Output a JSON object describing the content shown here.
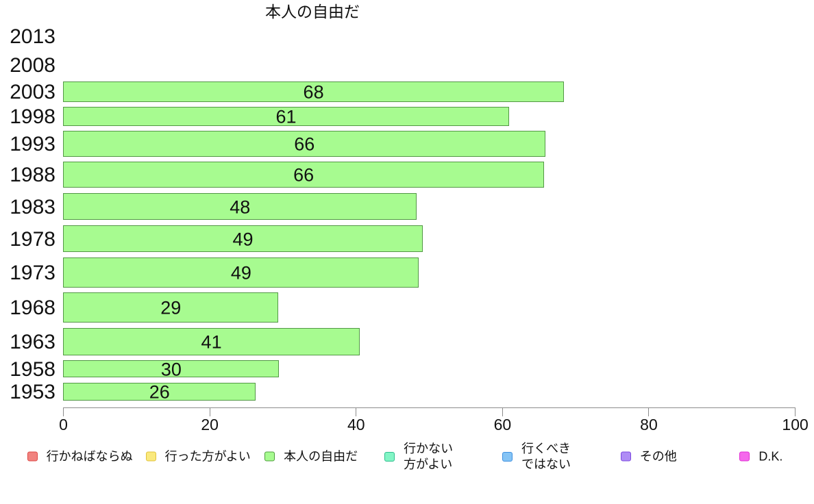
{
  "chart_data": {
    "type": "bar",
    "orientation": "horizontal",
    "title": "本人の自由だ",
    "categories": [
      "2013",
      "2008",
      "2003",
      "1998",
      "1993",
      "1988",
      "1983",
      "1978",
      "1973",
      "1968",
      "1963",
      "1958",
      "1953"
    ],
    "values": [
      null,
      null,
      68.4,
      60.9,
      65.9,
      65.7,
      48.3,
      49.1,
      48.6,
      29.4,
      40.5,
      29.5,
      26.3
    ],
    "bar_labels": [
      "",
      "",
      "68",
      "61",
      "66",
      "66",
      "48",
      "49",
      "49",
      "29",
      "41",
      "30",
      "26"
    ],
    "xlim": [
      0,
      100
    ],
    "x_ticks": [
      0,
      20,
      40,
      60,
      80,
      100
    ],
    "x_tick_labels": [
      "0",
      "20",
      "40",
      "60",
      "80",
      "100"
    ],
    "grid": false,
    "legend_position": "bottom",
    "bar_fill": "#a7fb90",
    "bar_border": "#529745",
    "axis_color": "#8c8c8c",
    "text_color": "#111111",
    "legend": [
      {
        "label": "行かねばならぬ",
        "fill": "#f1837f",
        "border": "#dd4744"
      },
      {
        "label": "行った方がよい",
        "fill": "#fae97d",
        "border": "#e0c23c"
      },
      {
        "label": "本人の自由だ",
        "fill": "#a7fb90",
        "border": "#4e9c3c"
      },
      {
        "label": "行かない\n方がよい",
        "fill": "#82f5c5",
        "border": "#2ebd8e"
      },
      {
        "label": "行くべき\nではない",
        "fill": "#85c4f5",
        "border": "#3d8fe0"
      },
      {
        "label": "その他",
        "fill": "#af8cf5",
        "border": "#7b48e0"
      },
      {
        "label": "D.K.",
        "fill": "#f568ec",
        "border": "#e02cd4"
      }
    ]
  }
}
